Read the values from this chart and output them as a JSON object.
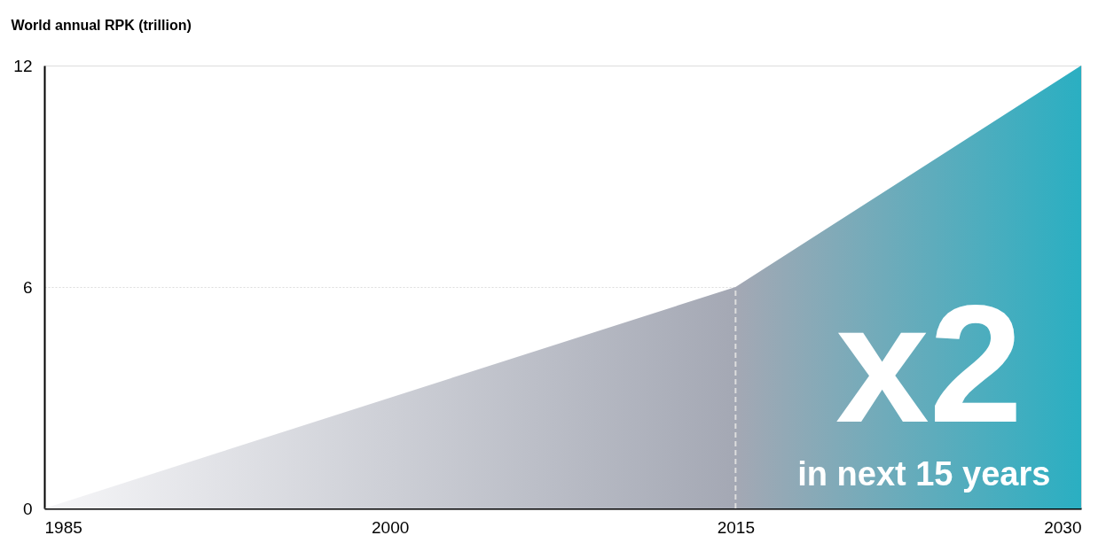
{
  "chart_data": {
    "type": "area",
    "ylabel": "World annual RPK (trillion)",
    "x": [
      1985,
      2015,
      2030
    ],
    "series": [
      {
        "colors": [
          "#f6f6f8",
          "#a4a8b4",
          "#2aafc2"
        ],
        "values": [
          0,
          6,
          12
        ]
      }
    ],
    "xlim": [
      1985,
      2030
    ],
    "xticks": [
      1985,
      2000,
      2015,
      2030
    ],
    "ylim": [
      0,
      12
    ],
    "yticks": [
      0,
      6,
      12
    ],
    "grid": "y",
    "ref_lines": [
      {
        "axis": "x",
        "value": 2015,
        "color": "#dddddd",
        "line_style": "dashed"
      }
    ],
    "annotations": [
      "x2",
      "in next 15 years"
    ]
  }
}
